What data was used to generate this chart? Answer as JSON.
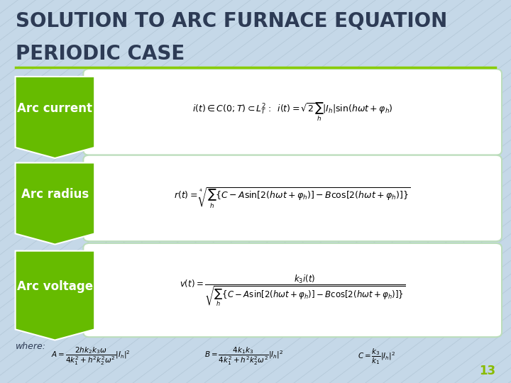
{
  "title_line1": "SOLUTION TO ARC FURNACE EQUATION",
  "title_line2": "PERIODIC CASE",
  "title_color": "#2d3b55",
  "title_fontsize": 20,
  "bg_color": "#c5d8e8",
  "arrow_color": "#66bb00",
  "box_bg": "#ffffff",
  "label_fontsize": 12,
  "labels": [
    "Arc current",
    "Arc radius",
    "Arc voltage"
  ],
  "eq1": "$i(t) \\in C(0;T) \\subset L^2_T:\\;\\; i(t) = \\sqrt{2}\\sum_{h}|I_h|\\sin(h\\omega t + \\varphi_h)$",
  "eq2": "$r(t) = \\sqrt[4]{\\sum_{h}\\{C - A\\sin[2(h\\omega t + \\varphi_h)] - B\\cos[2(h\\omega t + \\varphi_h)]\\}}$",
  "eq3": "$v(t) = \\dfrac{k_3 i(t)}{\\sqrt{\\sum_{h}\\{C - A\\sin[2(h\\omega t + \\varphi_h)] - B\\cos[2(h\\omega t + \\varphi_h)]\\}}}$",
  "where_text": "where:",
  "formula_A": "$A = \\dfrac{2hk_2k_3\\omega}{4k_1^2 + h^2k_2^2\\omega^2}|I_h|^2$",
  "formula_B": "$B = \\dfrac{4k_1k_3}{4k_1^2 + h^2k_2^2\\omega^2}|I_h|^2$",
  "formula_C": "$C = \\dfrac{k_3}{k_1}|I_h|^2$",
  "slide_number": "13",
  "slide_num_color": "#88bb00",
  "underline_color": "#88cc00"
}
